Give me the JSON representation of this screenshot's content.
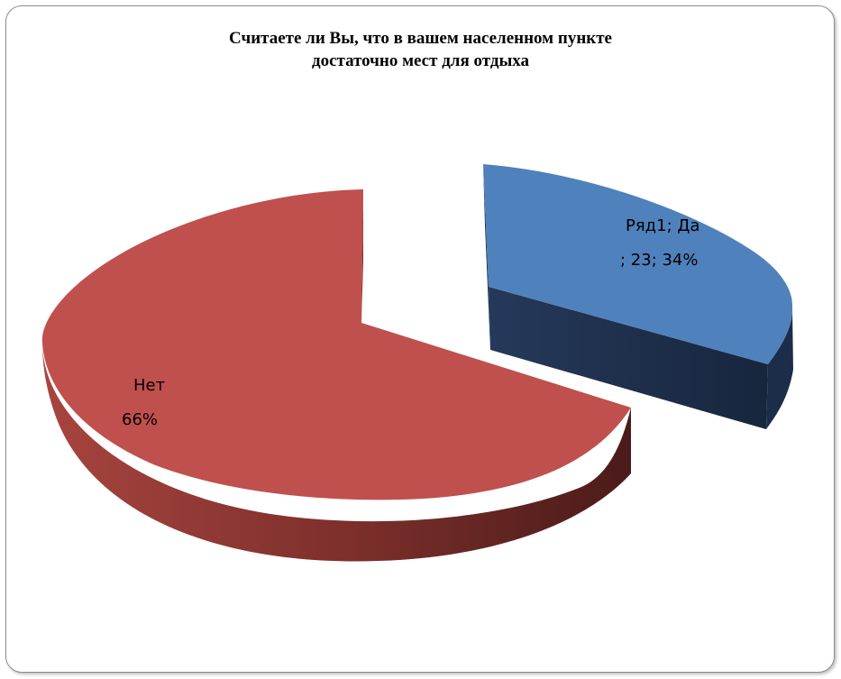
{
  "chart_data": {
    "type": "pie",
    "title_lines": [
      "Считаете ли Вы, что в вашем населенном пункте",
      "достаточно мест для отдыха"
    ],
    "series_name": "Ряд1",
    "slices": [
      {
        "category": "Да",
        "value": 23,
        "percent": 34,
        "color": "#4f81bd",
        "label_lines": [
          "Ряд1; Да",
          "; 23; 34%"
        ]
      },
      {
        "category": "Нет",
        "value": 45,
        "percent": 66,
        "color": "#c0504d",
        "label_lines": [
          "Нет",
          "66%"
        ]
      }
    ]
  }
}
